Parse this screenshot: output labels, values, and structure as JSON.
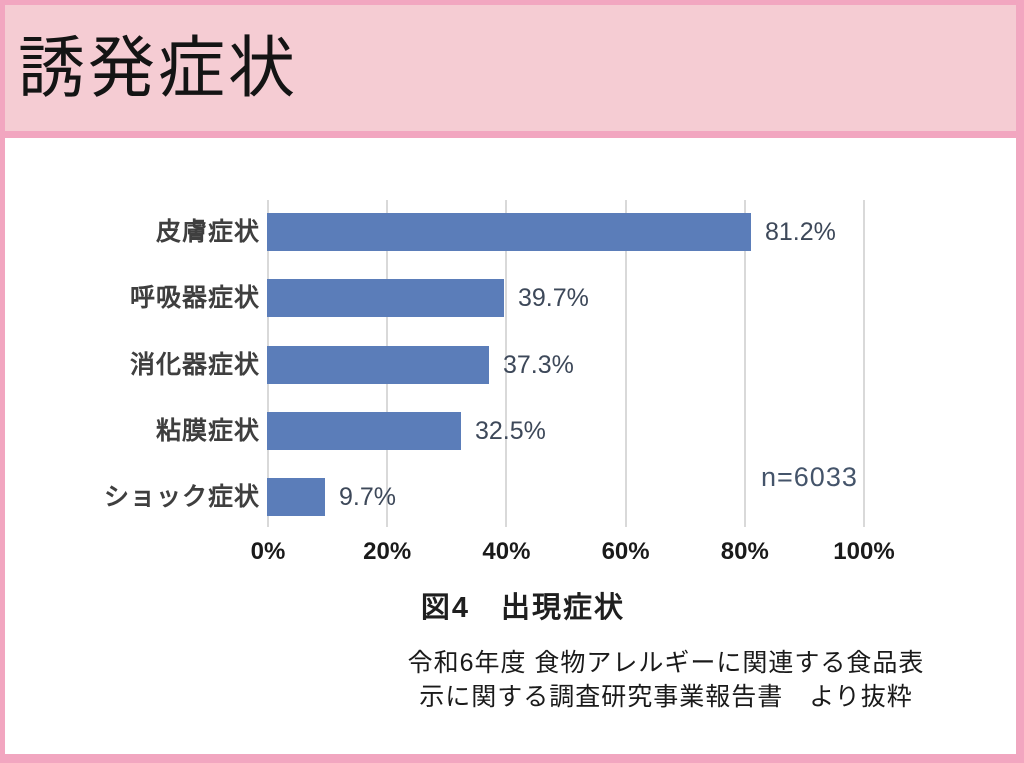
{
  "header": {
    "title": "誘発症状"
  },
  "figure": {
    "caption": "図4　出現症状"
  },
  "source": {
    "line1": "令和6年度 食物アレルギーに関連する食品表",
    "line2": "示に関する調査研究事業報告書　より抜粋"
  },
  "chart_data": {
    "type": "bar",
    "orientation": "horizontal",
    "title": "図4 出現症状",
    "categories": [
      "皮膚症状",
      "呼吸器症状",
      "消化器症状",
      "粘膜症状",
      "ショック症状"
    ],
    "values": [
      81.2,
      39.7,
      37.3,
      32.5,
      9.7
    ],
    "value_labels": [
      "81.2%",
      "39.7%",
      "37.3%",
      "32.5%",
      "9.7%"
    ],
    "x_tick_values": [
      0,
      20,
      40,
      60,
      80,
      100
    ],
    "x_tick_labels": [
      "0%",
      "20%",
      "40%",
      "60%",
      "80%",
      "100%"
    ],
    "xlim": [
      0,
      100
    ],
    "xlabel": "",
    "ylabel": "",
    "grid": "vertical-only",
    "legend": "none",
    "annotation": "n=6033",
    "colors": {
      "bar": "#5b7db9",
      "gridline": "#d9d9d9",
      "annotation": "#44546a"
    }
  },
  "theme": {
    "frame_pink": "#f2a6c0",
    "header_pink": "#f5ccd3",
    "panel_white": "#ffffff"
  }
}
